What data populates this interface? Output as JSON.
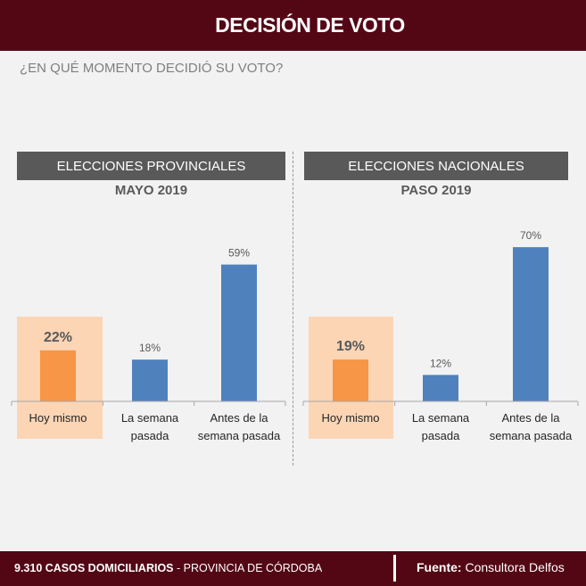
{
  "header": {
    "title": "DECISIÓN DE VOTO"
  },
  "question": "¿EN QUÉ MOMENTO DECIDIÓ SU VOTO?",
  "colors": {
    "header": "#530715",
    "panel": "#595959",
    "highlight_bg": "#fcd5b5",
    "highlight_bar": "#f79646",
    "bar": "#4f81bd"
  },
  "chart_data": [
    {
      "type": "bar",
      "title": "ELECCIONES PROVINCIALES",
      "subtitle": "MAYO 2019",
      "categories": [
        "Hoy mismo",
        "La semana pasada",
        "Antes de la semana pasada"
      ],
      "values": [
        22,
        18,
        59
      ],
      "labels": [
        "22%",
        "18%",
        "59%"
      ],
      "highlight_index": 0
    },
    {
      "type": "bar",
      "title": "ELECCIONES NACIONALES",
      "subtitle": "PASO 2019",
      "categories": [
        "Hoy mismo",
        "La semana pasada",
        "Antes de la semana pasada"
      ],
      "values": [
        19,
        12,
        70
      ],
      "labels": [
        "19%",
        "12%",
        "70%"
      ],
      "highlight_index": 0
    }
  ],
  "footer": {
    "count": "9.310 CASOS DOMICILIARIOS",
    "region": " - PROVINCIA DE CÓRDOBA",
    "source_label": "Fuente:",
    "source": " Consultora Delfos"
  }
}
